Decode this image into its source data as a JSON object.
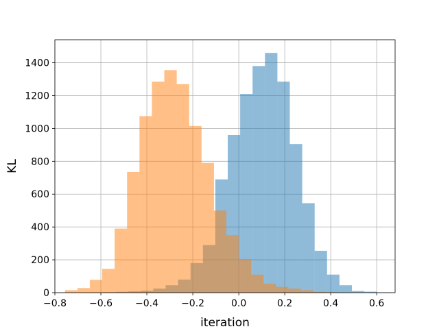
{
  "chart_data": {
    "type": "bar",
    "xlabel": "iteration",
    "ylabel": "KL",
    "xlim": [
      -0.8,
      0.68
    ],
    "ylim": [
      0,
      1540
    ],
    "x_ticks": [
      -0.8,
      -0.6,
      -0.4,
      -0.2,
      0.0,
      0.2,
      0.4,
      0.6
    ],
    "x_tick_labels": [
      "−0.8",
      "−0.6",
      "−0.4",
      "−0.2",
      "0.0",
      "0.2",
      "0.4",
      "0.6"
    ],
    "y_ticks": [
      0,
      200,
      400,
      600,
      800,
      1000,
      1200,
      1400
    ],
    "y_tick_labels": [
      "0",
      "200",
      "400",
      "600",
      "800",
      "1000",
      "1200",
      "1400"
    ],
    "grid": true,
    "legend": false,
    "series": [
      {
        "color": "#1f77b4",
        "opacity": 0.5,
        "bin_width": 0.054,
        "bin_starts": [
          -0.642,
          -0.588,
          -0.534,
          -0.48,
          -0.426,
          -0.372,
          -0.318,
          -0.264,
          -0.21,
          -0.156,
          -0.102,
          -0.048,
          0.006,
          0.06,
          0.114,
          0.168,
          0.222,
          0.276,
          0.33,
          0.384,
          0.438,
          0.492,
          0.546,
          0.6
        ],
        "values": [
          2,
          3,
          5,
          8,
          12,
          25,
          45,
          80,
          180,
          290,
          690,
          960,
          1210,
          1380,
          1460,
          1285,
          905,
          545,
          255,
          110,
          45,
          10,
          6,
          2
        ]
      },
      {
        "color": "#ff7f0e",
        "opacity": 0.5,
        "bin_width": 0.054,
        "bin_starts": [
          -0.756,
          -0.702,
          -0.648,
          -0.594,
          -0.54,
          -0.486,
          -0.432,
          -0.378,
          -0.324,
          -0.27,
          -0.216,
          -0.162,
          -0.108,
          -0.054,
          0.0,
          0.054,
          0.108,
          0.162,
          0.216,
          0.27,
          0.324,
          0.378,
          0.432
        ],
        "values": [
          15,
          28,
          78,
          145,
          390,
          735,
          1075,
          1285,
          1355,
          1270,
          1015,
          790,
          500,
          350,
          205,
          110,
          55,
          35,
          25,
          15,
          5,
          3,
          1
        ]
      }
    ]
  }
}
